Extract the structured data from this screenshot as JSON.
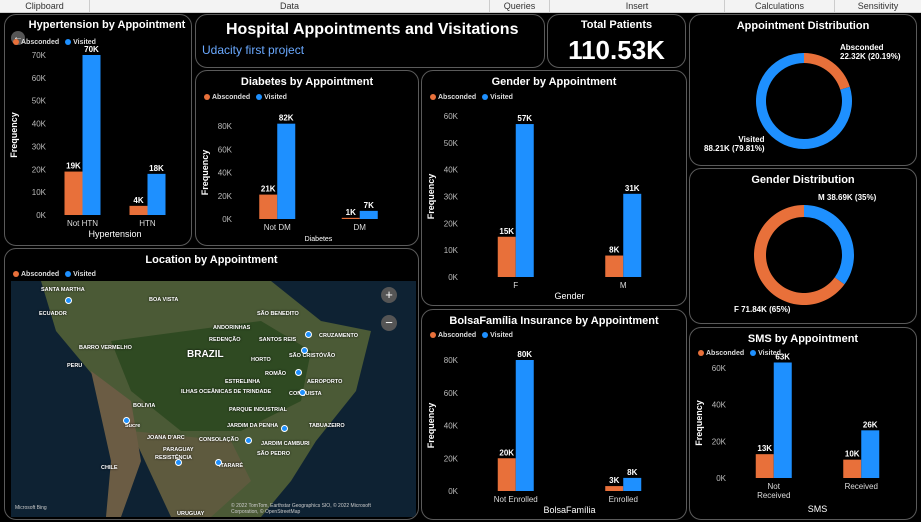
{
  "ribbon": [
    "Clipboard",
    "Data",
    "Queries",
    "Insert",
    "Calculations",
    "Sensitivity"
  ],
  "colors": {
    "absconded": "#e8703a",
    "visited": "#1e90ff",
    "axis": "#bbbbbb",
    "card_border": "#5a5a5a"
  },
  "legend": {
    "absconded": "Absconded",
    "visited": "Visited"
  },
  "header": {
    "title": "Hospital Appointments and Visitations",
    "subtitle": "Udacity first project"
  },
  "kpi": {
    "label": "Total Patients",
    "value": "110.53K"
  },
  "map": {
    "title": "Location by Appointment",
    "places": [
      "SANTA MARTHA",
      "BOA VISTA",
      "SÃO BENEDITO",
      "ECUADOR",
      "ANDORINHAS",
      "CRUZAMENTO",
      "REDENÇÃO",
      "SANTOS REIS",
      "BARRO VERMELHO",
      "BRAZIL",
      "SÃO CRISTÓVÃO",
      "HORTO",
      "PERU",
      "ROMÃO",
      "ESTRELINHA",
      "AEROPORTO",
      "ILHAS OCEÂNICAS DE TRINDADE",
      "CONQUISTA",
      "BOLIVIA",
      "PARQUE INDUSTRIAL",
      "JARDIM DA PENHA",
      "TABUAZEIRO",
      "JOANA D'ARC",
      "CONSOLAÇÃO",
      "JARDIM CAMBURI",
      "PARAGUAY",
      "SÃO PEDRO",
      "RESISTÊNCIA",
      "ITARARÉ",
      "CHILE",
      "URUGUAY",
      "Sucre"
    ],
    "attribution": "© 2022 TomTom, Earthstar Geographics SIO, © 2022 Microsoft Corporation, © OpenStreetMap",
    "bing": "Microsoft Bing",
    "zoom_in": "+",
    "zoom_out": "−"
  },
  "chart_data": [
    {
      "id": "hypertension",
      "type": "bar",
      "title": "Hypertension by Appointment",
      "xlabel": "Hypertension",
      "ylabel": "Frequency",
      "categories": [
        "Not HTN",
        "HTN"
      ],
      "ylim": [
        0,
        70000
      ],
      "yticks": [
        0,
        10000,
        20000,
        30000,
        40000,
        50000,
        60000,
        70000
      ],
      "ytick_labels": [
        "0K",
        "10K",
        "20K",
        "30K",
        "40K",
        "50K",
        "60K",
        "70K"
      ],
      "series": [
        {
          "name": "Absconded",
          "values": [
            19000,
            4000
          ],
          "labels": [
            "19K",
            "4K"
          ]
        },
        {
          "name": "Visited",
          "values": [
            70000,
            18000
          ],
          "labels": [
            "70K",
            "18K"
          ]
        }
      ]
    },
    {
      "id": "diabetes",
      "type": "bar",
      "title": "Diabetes by Appointment",
      "xlabel": "Diabetes",
      "ylabel": "Frequency",
      "categories": [
        "Not DM",
        "DM"
      ],
      "ylim": [
        0,
        80000
      ],
      "yticks": [
        0,
        20000,
        40000,
        60000,
        80000
      ],
      "ytick_labels": [
        "0K",
        "20K",
        "40K",
        "60K",
        "80K"
      ],
      "series": [
        {
          "name": "Absconded",
          "values": [
            21000,
            1000
          ],
          "labels": [
            "21K",
            "1K"
          ]
        },
        {
          "name": "Visited",
          "values": [
            82000,
            7000
          ],
          "labels": [
            "82K",
            "7K"
          ]
        }
      ]
    },
    {
      "id": "gender",
      "type": "bar",
      "title": "Gender by Appointment",
      "xlabel": "Gender",
      "ylabel": "Frequency",
      "categories": [
        "F",
        "M"
      ],
      "ylim": [
        0,
        60000
      ],
      "yticks": [
        0,
        10000,
        20000,
        30000,
        40000,
        50000,
        60000
      ],
      "ytick_labels": [
        "0K",
        "10K",
        "20K",
        "30K",
        "40K",
        "50K",
        "60K"
      ],
      "series": [
        {
          "name": "Absconded",
          "values": [
            15000,
            8000
          ],
          "labels": [
            "15K",
            "8K"
          ]
        },
        {
          "name": "Visited",
          "values": [
            57000,
            31000
          ],
          "labels": [
            "57K",
            "31K"
          ]
        }
      ]
    },
    {
      "id": "bolsa",
      "type": "bar",
      "title": "BolsaFamília Insurance by Appointment",
      "xlabel": "BolsaFamília",
      "ylabel": "Frequency",
      "categories": [
        "Not Enrolled",
        "Enrolled"
      ],
      "ylim": [
        0,
        80000
      ],
      "yticks": [
        0,
        20000,
        40000,
        60000,
        80000
      ],
      "ytick_labels": [
        "0K",
        "20K",
        "40K",
        "60K",
        "80K"
      ],
      "series": [
        {
          "name": "Absconded",
          "values": [
            20000,
            3000
          ],
          "labels": [
            "20K",
            "3K"
          ]
        },
        {
          "name": "Visited",
          "values": [
            80000,
            8000
          ],
          "labels": [
            "80K",
            "8K"
          ]
        }
      ]
    },
    {
      "id": "sms",
      "type": "bar",
      "title": "SMS by Appointment",
      "xlabel": "SMS",
      "ylabel": "Frequency",
      "categories": [
        "Not Received",
        "Received"
      ],
      "ylim": [
        0,
        60000
      ],
      "yticks": [
        0,
        20000,
        40000,
        60000
      ],
      "ytick_labels": [
        "0K",
        "20K",
        "40K",
        "60K"
      ],
      "series": [
        {
          "name": "Absconded",
          "values": [
            13000,
            10000
          ],
          "labels": [
            "13K",
            "10K"
          ]
        },
        {
          "name": "Visited",
          "values": [
            63000,
            26000
          ],
          "labels": [
            "63K",
            "26K"
          ]
        }
      ]
    },
    {
      "id": "appt_dist",
      "type": "pie",
      "title": "Appointment Distribution",
      "slices": [
        {
          "name": "Absconded",
          "value": 22320,
          "label": "Absconded\n22.32K (20.19%)"
        },
        {
          "name": "Visited",
          "value": 88210,
          "label": "Visited\n88.21K (79.81%)"
        }
      ]
    },
    {
      "id": "gender_dist",
      "type": "pie",
      "title": "Gender Distribution",
      "slices": [
        {
          "name": "M",
          "value": 38690,
          "label": "M 38.69K (35%)"
        },
        {
          "name": "F",
          "value": 71840,
          "label": "F 71.84K (65%)"
        }
      ]
    }
  ]
}
